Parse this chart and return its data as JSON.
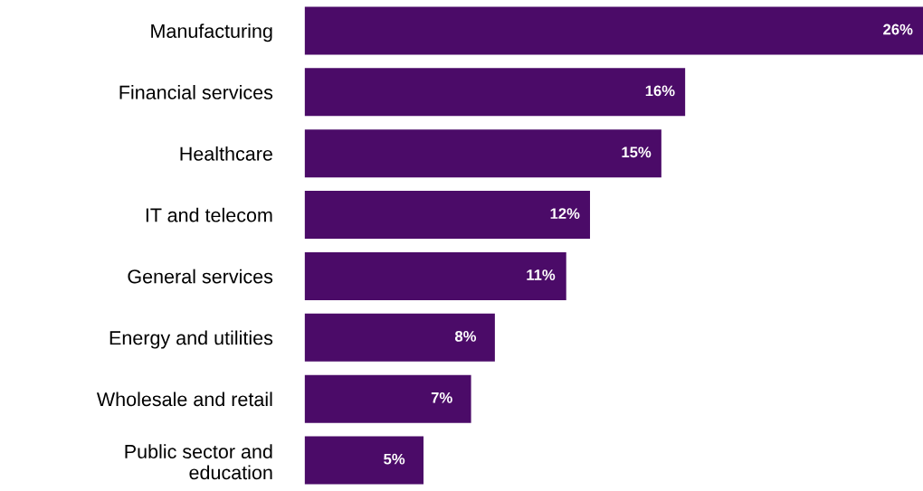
{
  "chart_data": {
    "type": "bar",
    "orientation": "horizontal",
    "categories": [
      "Manufacturing",
      "Financial services",
      "Healthcare",
      "IT and telecom",
      "General services",
      "Energy and utilities",
      "Wholesale and retail",
      "Public sector and\neducation"
    ],
    "values": [
      26,
      16,
      15,
      12,
      11,
      8,
      7,
      5
    ],
    "value_labels": [
      "26%",
      "16%",
      "15%",
      "12%",
      "11%",
      "8%",
      "7%",
      "5%"
    ],
    "color": "#4b0b68",
    "grid": false,
    "legend": false,
    "tick_labels": "y"
  }
}
